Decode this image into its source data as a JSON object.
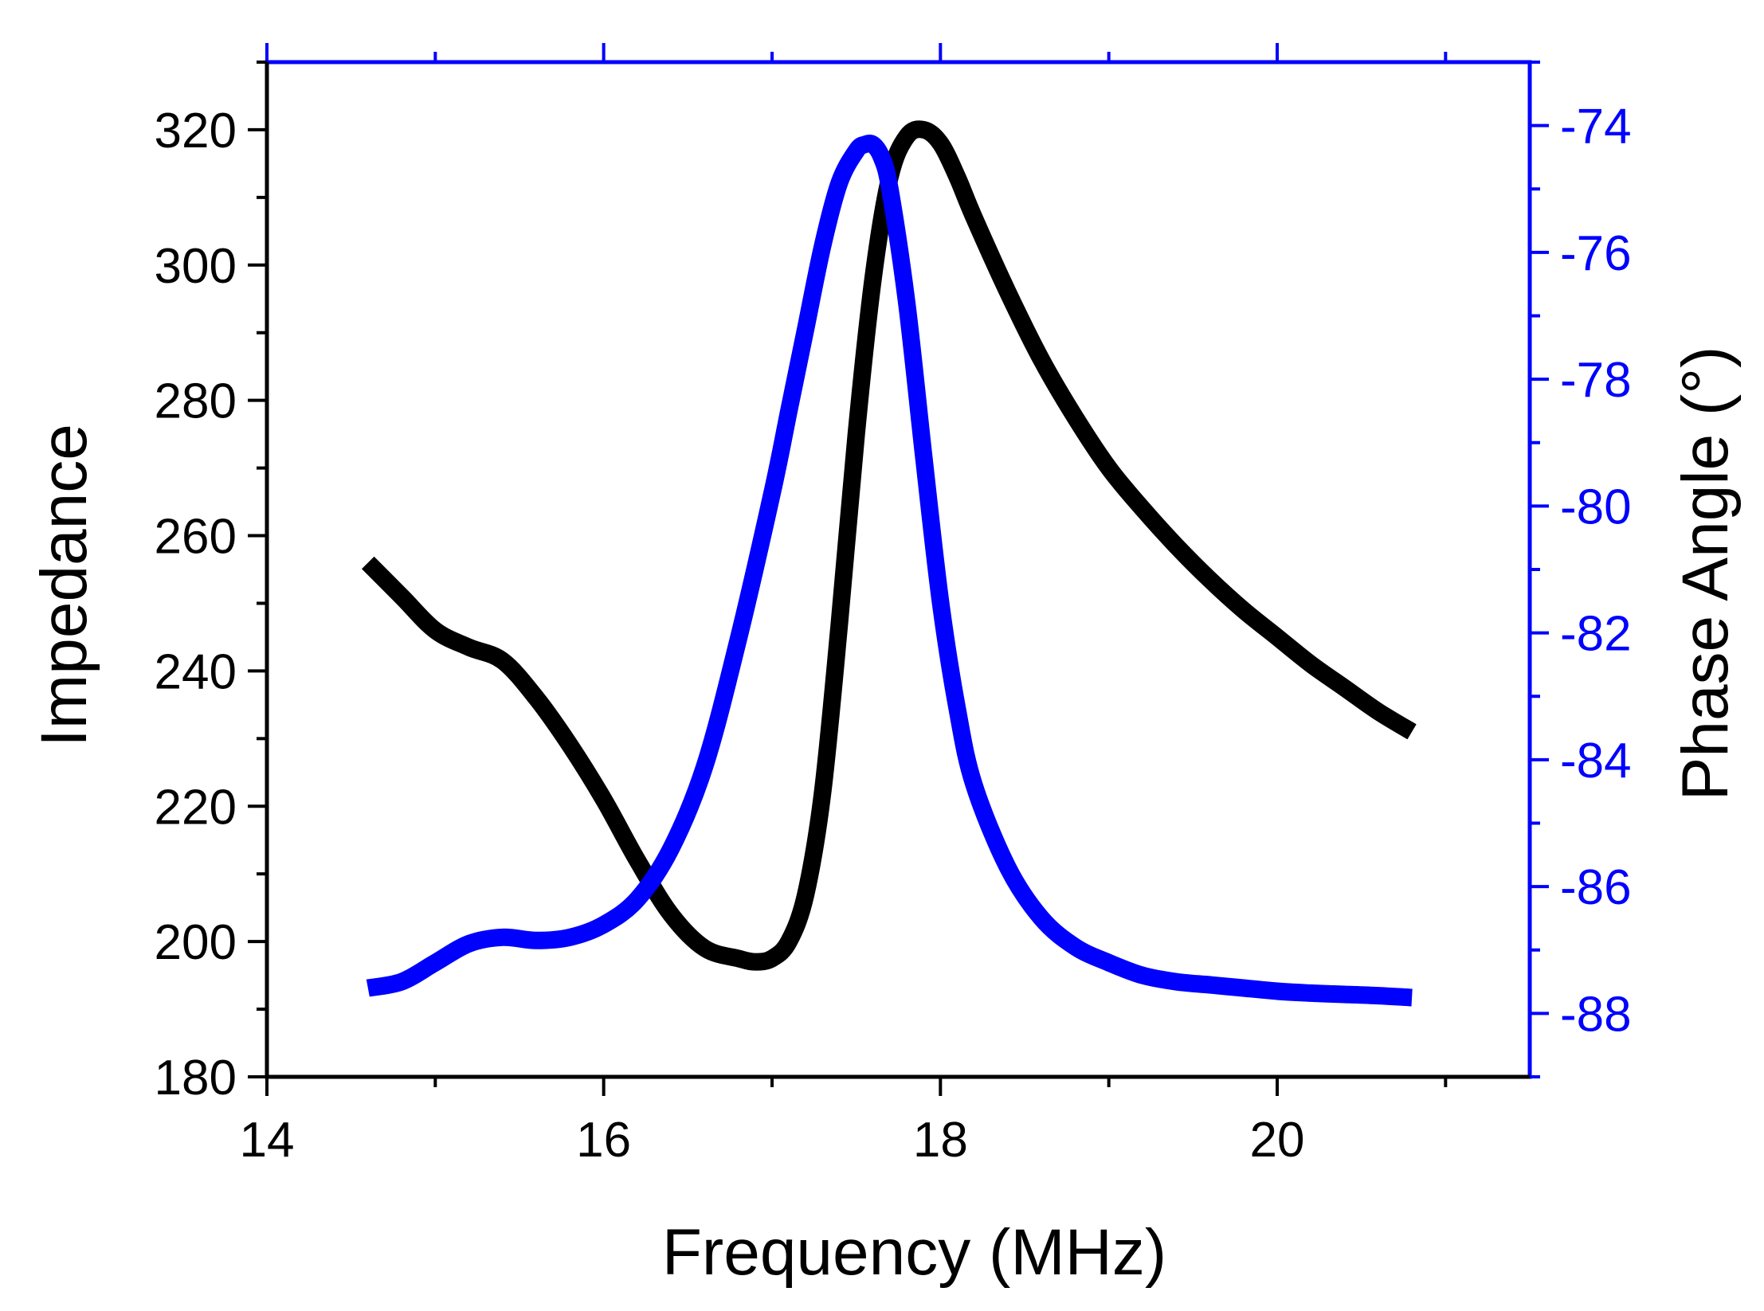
{
  "chart_data": {
    "type": "line",
    "title": "",
    "xlabel": "Frequency (MHz)",
    "ylabel": "Impedance",
    "y2label": "Phase Angle (°)",
    "xlim": [
      14,
      21.5
    ],
    "ylim": [
      180,
      330
    ],
    "y2lim": [
      -89,
      -73
    ],
    "x_ticks": [
      14,
      16,
      18,
      20
    ],
    "y_ticks": [
      180,
      200,
      220,
      240,
      260,
      280,
      300,
      320
    ],
    "y2_ticks": [
      -74,
      -76,
      -78,
      -80,
      -82,
      -84,
      -86,
      -88
    ],
    "grid": false,
    "legend": "none",
    "colors": {
      "left_axis": "#000000",
      "right_axis": "#0000ff",
      "impedance": "#000000",
      "phase": "#0000ff"
    },
    "series": [
      {
        "name": "Impedance",
        "axis": "left",
        "color": "#000000",
        "x": [
          14.6,
          14.8,
          15.0,
          15.2,
          15.4,
          15.6,
          15.8,
          16.0,
          16.2,
          16.4,
          16.6,
          16.8,
          16.9,
          17.0,
          17.1,
          17.2,
          17.3,
          17.4,
          17.5,
          17.6,
          17.7,
          17.8,
          17.9,
          18.0,
          18.1,
          18.2,
          18.4,
          18.6,
          18.8,
          19.0,
          19.2,
          19.4,
          19.6,
          19.8,
          20.0,
          20.2,
          20.4,
          20.6,
          20.8
        ],
        "values": [
          256,
          251,
          246,
          243.5,
          241.5,
          236,
          229,
          221,
          212,
          204,
          199,
          197.5,
          197,
          197.5,
          200,
          207,
          222,
          247,
          275,
          298,
          313,
          319,
          320,
          318,
          313,
          307,
          296,
          286,
          277.5,
          270,
          264,
          258.5,
          253.5,
          249,
          245,
          241,
          237.5,
          234,
          231
        ]
      },
      {
        "name": "Phase Angle",
        "axis": "right",
        "color": "#0000ff",
        "x": [
          14.6,
          14.8,
          15.0,
          15.2,
          15.4,
          15.6,
          15.8,
          16.0,
          16.2,
          16.4,
          16.6,
          16.8,
          17.0,
          17.1,
          17.2,
          17.3,
          17.4,
          17.5,
          17.55,
          17.6,
          17.65,
          17.7,
          17.8,
          17.9,
          18.0,
          18.1,
          18.2,
          18.4,
          18.6,
          18.8,
          19.0,
          19.2,
          19.4,
          19.6,
          19.8,
          20.0,
          20.2,
          20.4,
          20.6,
          20.8
        ],
        "values": [
          -87.6,
          -87.5,
          -87.2,
          -86.9,
          -86.8,
          -86.85,
          -86.8,
          -86.6,
          -86.2,
          -85.4,
          -84.1,
          -82.1,
          -79.8,
          -78.5,
          -77.2,
          -75.9,
          -74.9,
          -74.4,
          -74.3,
          -74.3,
          -74.5,
          -75.0,
          -76.8,
          -79.2,
          -81.5,
          -83.2,
          -84.4,
          -85.7,
          -86.5,
          -86.95,
          -87.2,
          -87.4,
          -87.5,
          -87.55,
          -87.6,
          -87.65,
          -87.68,
          -87.7,
          -87.72,
          -87.75
        ]
      }
    ]
  }
}
